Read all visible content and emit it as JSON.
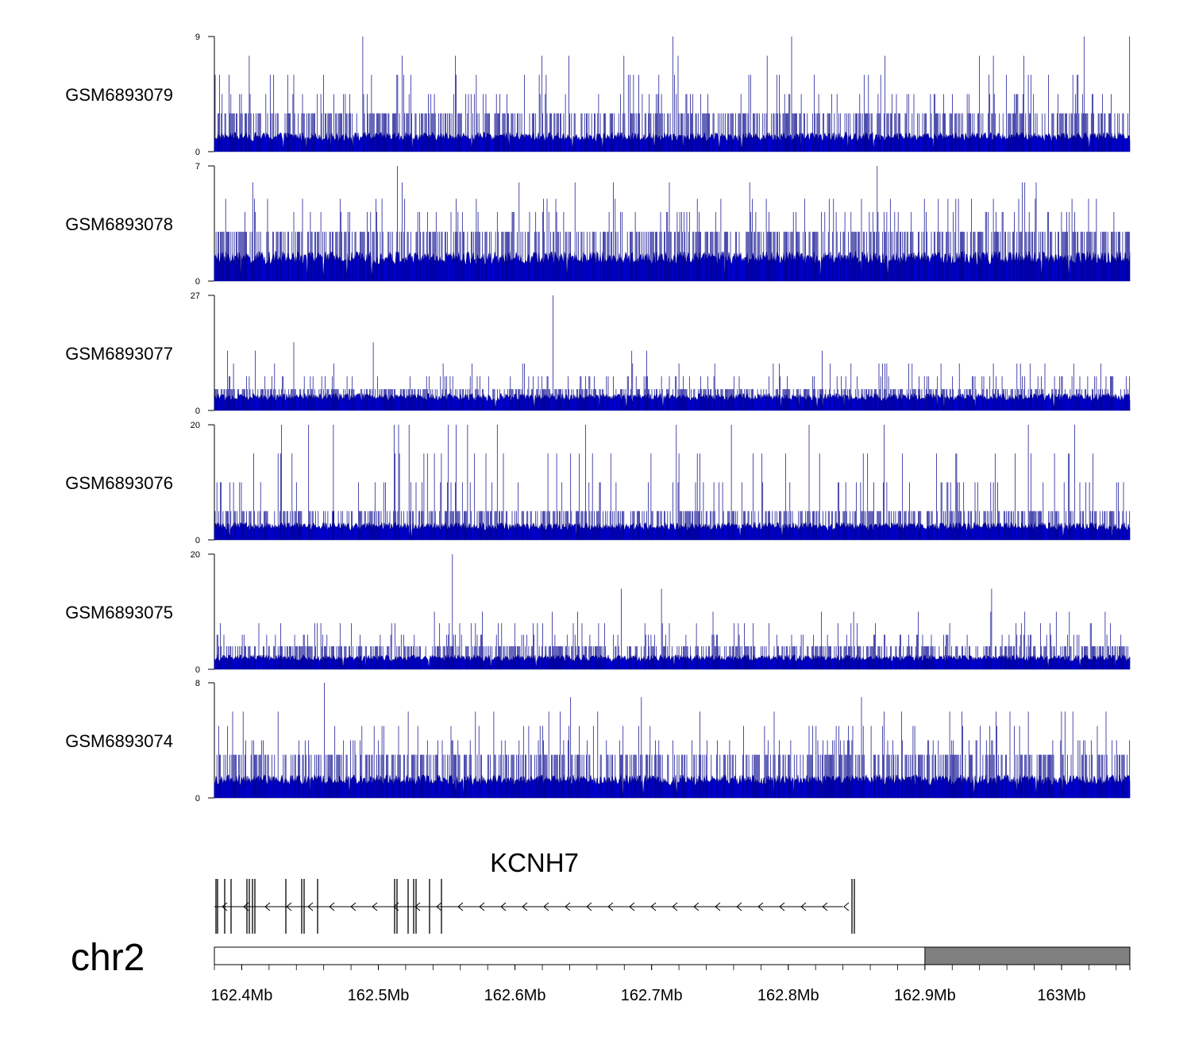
{
  "colors": {
    "signal": "#00008B",
    "fill": "#0000CD",
    "ideogram_band": "#808080",
    "axis": "#000000"
  },
  "chart_data": {
    "type": "genome-browser-coverage",
    "chromosome": "chr2",
    "genomic_range_bp": [
      162380000,
      163050000
    ],
    "tracks": [
      {
        "name": "GSM6893079",
        "ylim": [
          0,
          9
        ],
        "ymax_label": "9",
        "ymin_label": "0",
        "base": 1.5,
        "spike_levels": [
          3,
          4.5,
          6,
          7.5,
          9
        ]
      },
      {
        "name": "GSM6893078",
        "ylim": [
          0,
          7
        ],
        "ymax_label": "7",
        "ymin_label": "0",
        "base": 1.8,
        "spike_levels": [
          3,
          4.2,
          5,
          6,
          7
        ]
      },
      {
        "name": "GSM6893077",
        "ylim": [
          0,
          27
        ],
        "ymax_label": "27",
        "ymin_label": "0",
        "base": 4,
        "spike_levels": [
          5,
          8,
          11,
          14,
          16,
          22,
          27
        ]
      },
      {
        "name": "GSM6893076",
        "ylim": [
          0,
          20
        ],
        "ymax_label": "20",
        "ymin_label": "0",
        "base": 3,
        "spike_levels": [
          5,
          10,
          15,
          20
        ]
      },
      {
        "name": "GSM6893075",
        "ylim": [
          0,
          20
        ],
        "ymax_label": "20",
        "ymin_label": "0",
        "base": 2.5,
        "spike_levels": [
          4,
          6,
          8,
          10,
          14,
          20
        ]
      },
      {
        "name": "GSM6893074",
        "ylim": [
          0,
          8
        ],
        "ymax_label": "8",
        "ymin_label": "0",
        "base": 1.6,
        "spike_levels": [
          3,
          4,
          5,
          6,
          7,
          8
        ]
      }
    ],
    "gene": {
      "name": "KCNH7",
      "strand": "-",
      "start_bp": 162380000,
      "end_bp": 162840000,
      "exons_bp": [
        162380000,
        162382000,
        162388000,
        162393000,
        162403000,
        162405000,
        162407000,
        162403800,
        162403200,
        162404500,
        162405200,
        162405800,
        162406100,
        162405900,
        162405600,
        162405300,
        162404900,
        162404700,
        162404300,
        162403900
      ]
    },
    "x_axis": {
      "ticks": [
        "162.4Mb",
        "162.5Mb",
        "162.6Mb",
        "162.7Mb",
        "162.8Mb",
        "162.9Mb",
        "163Mb"
      ],
      "tick_values_bp": [
        162400000,
        162500000,
        162600000,
        162700000,
        162800000,
        162900000,
        163000000
      ]
    },
    "ideogram_band_bp": [
      162900000,
      163050000
    ]
  }
}
